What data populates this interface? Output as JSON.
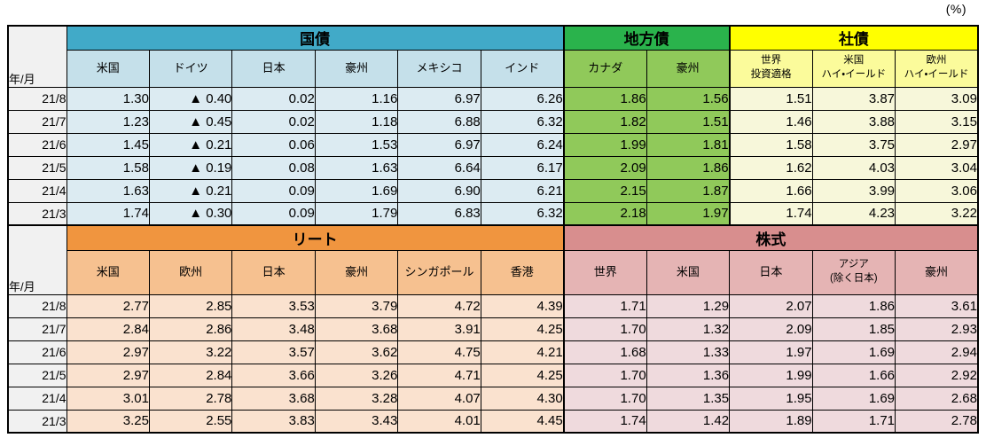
{
  "unit_label": "(%)",
  "row_header_label": "年/月",
  "colors": {
    "kokusai_header": "#41AAC8",
    "kokusai_sub": "#C5E0EA",
    "kokusai_cell": "#DCEBF2",
    "chihosai_header": "#2AB34C",
    "chihosai_cell": "#90C95A",
    "shasai_header": "#FFFF00",
    "shasai_sub": "#FBFB9B",
    "shasai_cell": "#F7F7DA",
    "reit_header": "#F0953F",
    "reit_sub": "#F6C190",
    "reit_cell": "#FAE2CF",
    "equity_header": "#D88E8E",
    "equity_sub": "#E5B4B4",
    "equity_cell": "#EFDADD",
    "label_bg": "#F1F1F1",
    "border": "#000000"
  },
  "top_table": {
    "groups": [
      {
        "label": "国債",
        "palette": "blue",
        "columns": [
          "米国",
          "ドイツ",
          "日本",
          "豪州",
          "メキシコ",
          "インド"
        ]
      },
      {
        "label": "地方債",
        "palette": "green",
        "columns": [
          "カナダ",
          "豪州"
        ]
      },
      {
        "label": "社債",
        "palette": "yellow",
        "columns": [
          "世界\n投資適格",
          "米国\nハイ・イールド",
          "欧州\nハイ・イールド"
        ]
      }
    ],
    "rows": [
      {
        "label": "21/8",
        "values": [
          "1.30",
          "▲ 0.40",
          "0.02",
          "1.16",
          "6.97",
          "6.26",
          "1.86",
          "1.56",
          "1.51",
          "3.87",
          "3.09"
        ]
      },
      {
        "label": "21/7",
        "values": [
          "1.23",
          "▲ 0.45",
          "0.02",
          "1.18",
          "6.88",
          "6.32",
          "1.82",
          "1.51",
          "1.46",
          "3.88",
          "3.15"
        ]
      },
      {
        "label": "21/6",
        "values": [
          "1.45",
          "▲ 0.21",
          "0.06",
          "1.53",
          "6.97",
          "6.24",
          "1.99",
          "1.81",
          "1.58",
          "3.75",
          "2.97"
        ]
      },
      {
        "label": "21/5",
        "values": [
          "1.58",
          "▲ 0.19",
          "0.08",
          "1.63",
          "6.64",
          "6.17",
          "2.09",
          "1.86",
          "1.62",
          "4.03",
          "3.04"
        ]
      },
      {
        "label": "21/4",
        "values": [
          "1.63",
          "▲ 0.21",
          "0.09",
          "1.69",
          "6.90",
          "6.21",
          "2.15",
          "1.87",
          "1.66",
          "3.99",
          "3.06"
        ]
      },
      {
        "label": "21/3",
        "values": [
          "1.74",
          "▲ 0.30",
          "0.09",
          "1.79",
          "6.83",
          "6.32",
          "2.18",
          "1.97",
          "1.74",
          "4.23",
          "3.22"
        ]
      }
    ]
  },
  "bottom_table": {
    "groups": [
      {
        "label": "リート",
        "palette": "orange",
        "columns": [
          "米国",
          "欧州",
          "日本",
          "豪州",
          "シンガポール",
          "香港"
        ]
      },
      {
        "label": "株式",
        "palette": "rose",
        "columns": [
          "世界",
          "米国",
          "日本",
          "アジア\n(除く日本)",
          "豪州"
        ]
      }
    ],
    "rows": [
      {
        "label": "21/8",
        "values": [
          "2.77",
          "2.85",
          "3.53",
          "3.79",
          "4.72",
          "4.39",
          "1.71",
          "1.29",
          "2.07",
          "1.86",
          "3.61"
        ]
      },
      {
        "label": "21/7",
        "values": [
          "2.84",
          "2.86",
          "3.48",
          "3.68",
          "3.91",
          "4.25",
          "1.70",
          "1.32",
          "2.09",
          "1.85",
          "2.93"
        ]
      },
      {
        "label": "21/6",
        "values": [
          "2.97",
          "3.22",
          "3.57",
          "3.62",
          "4.75",
          "4.21",
          "1.68",
          "1.33",
          "1.97",
          "1.69",
          "2.94"
        ]
      },
      {
        "label": "21/5",
        "values": [
          "2.97",
          "2.84",
          "3.66",
          "3.26",
          "4.71",
          "4.25",
          "1.70",
          "1.36",
          "1.99",
          "1.66",
          "2.92"
        ]
      },
      {
        "label": "21/4",
        "values": [
          "3.01",
          "2.78",
          "3.68",
          "3.28",
          "4.07",
          "4.30",
          "1.70",
          "1.35",
          "1.95",
          "1.69",
          "2.68"
        ]
      },
      {
        "label": "21/3",
        "values": [
          "3.25",
          "2.55",
          "3.83",
          "3.43",
          "4.01",
          "4.45",
          "1.74",
          "1.42",
          "1.89",
          "1.71",
          "2.78"
        ]
      }
    ]
  }
}
